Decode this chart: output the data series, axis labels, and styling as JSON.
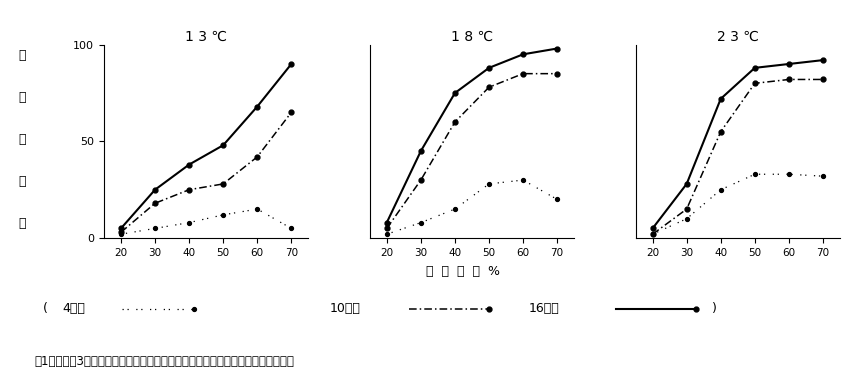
{
  "panels": [
    {
      "title": "1 3 ℃",
      "x": [
        20,
        30,
        40,
        50,
        60,
        70
      ],
      "day4": [
        2,
        5,
        8,
        12,
        15,
        5
      ],
      "day10": [
        3,
        18,
        25,
        28,
        42,
        65
      ],
      "day16": [
        5,
        25,
        38,
        48,
        68,
        90
      ]
    },
    {
      "title": "1 8 ℃",
      "x": [
        20,
        30,
        40,
        50,
        60,
        70
      ],
      "day4": [
        2,
        8,
        15,
        28,
        30,
        20
      ],
      "day10": [
        5,
        30,
        60,
        78,
        85,
        85
      ],
      "day16": [
        8,
        45,
        75,
        88,
        95,
        98
      ]
    },
    {
      "title": "2 3 ℃",
      "x": [
        20,
        30,
        40,
        50,
        60,
        70
      ],
      "day4": [
        2,
        10,
        25,
        33,
        33,
        32
      ],
      "day10": [
        2,
        15,
        55,
        80,
        82,
        82
      ],
      "day16": [
        5,
        28,
        72,
        88,
        90,
        92
      ]
    }
  ],
  "ylabel_chars": [
    "尿",
    "素",
    "分",
    "解",
    "率"
  ],
  "xlabel": "水  分  含  量  %",
  "caption": "図1．　尿素3％添加した稲ワラの水分、温度条件の違いによる尿素分解率の推移",
  "legend_day4": "4日後",
  "legend_day10": "10日後",
  "legend_day16": "16日後",
  "ylim": [
    0,
    100
  ],
  "xticks": [
    20,
    30,
    40,
    50,
    60,
    70
  ],
  "background": "#ffffff",
  "line_color": "#000000"
}
